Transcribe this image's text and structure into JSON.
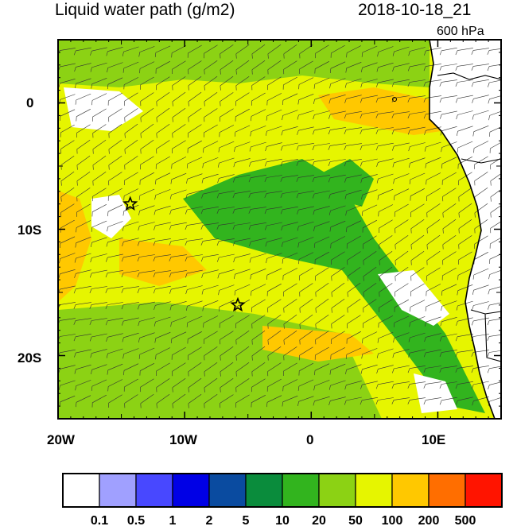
{
  "figure": {
    "title": "Liquid water path (g/m2)",
    "datetime": "2018-10-18_21",
    "level": "600 hPa"
  },
  "axes": {
    "lon_ticks": [
      "20W",
      "10W",
      "0",
      "10E"
    ],
    "lat_ticks": [
      "0",
      "10S",
      "20S"
    ],
    "lon_range_deg": [
      -20,
      15
    ],
    "lat_range_deg": [
      -25,
      5
    ]
  },
  "colorbar": {
    "labels": [
      "0.1",
      "0.5",
      "1",
      "2",
      "5",
      "10",
      "20",
      "50",
      "100",
      "200",
      "500"
    ],
    "colors": [
      "#ffffff",
      "#a0a0ff",
      "#4848ff",
      "#0000e6",
      "#0a4ba0",
      "#0a8c3c",
      "#32b41e",
      "#8cd214",
      "#e6f500",
      "#ffc800",
      "#ff6e00",
      "#ff1400"
    ]
  },
  "markers": [
    {
      "type": "star",
      "lon": -14.3,
      "lat": -8.0
    },
    {
      "type": "star",
      "lon": -5.8,
      "lat": -16.0
    }
  ],
  "field": {
    "background": "#e6f500",
    "regions": [
      {
        "color": "#8cd214"
      },
      {
        "color": "#8cd214"
      },
      {
        "color": "#32b41e"
      },
      {
        "color": "#32b41e"
      },
      {
        "color": "#ffc800"
      },
      {
        "color": "#ffc800"
      },
      {
        "color": "#ffc800"
      },
      {
        "color": "#ffc800"
      },
      {
        "color": "#ffffff"
      },
      {
        "color": "#ffffff"
      },
      {
        "color": "#ffffff"
      },
      {
        "color": "#ffffff"
      }
    ]
  }
}
